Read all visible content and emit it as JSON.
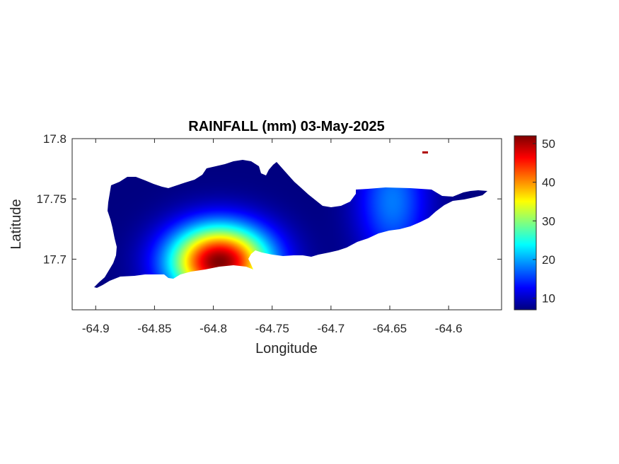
{
  "chart_data": {
    "type": "heatmap",
    "title": "RAINFALL (mm) 03-May-2025",
    "xlabel": "Longitude",
    "ylabel": "Latitude",
    "xlim": [
      -64.92,
      -64.555
    ],
    "ylim": [
      17.658,
      17.8
    ],
    "xticks": [
      -64.9,
      -64.85,
      -64.8,
      -64.75,
      -64.7,
      -64.65,
      -64.6
    ],
    "xtick_labels": [
      "-64.9",
      "-64.85",
      "-64.8",
      "-64.75",
      "-64.7",
      "-64.65",
      "-64.6"
    ],
    "yticks": [
      17.7,
      17.75,
      17.8
    ],
    "ytick_labels": [
      "17.7",
      "17.75",
      "17.8"
    ],
    "colormap": "jet",
    "colorbar": {
      "min": 7,
      "max": 52,
      "ticks": [
        10,
        20,
        30,
        40,
        50
      ],
      "tick_labels": [
        "10",
        "20",
        "30",
        "40",
        "50"
      ]
    },
    "rain_centers": [
      {
        "lon": -64.795,
        "lat": 17.698,
        "value": 52
      },
      {
        "lon": -64.648,
        "lat": 17.748,
        "value": 18
      }
    ],
    "background_value": 7,
    "grid": false
  }
}
